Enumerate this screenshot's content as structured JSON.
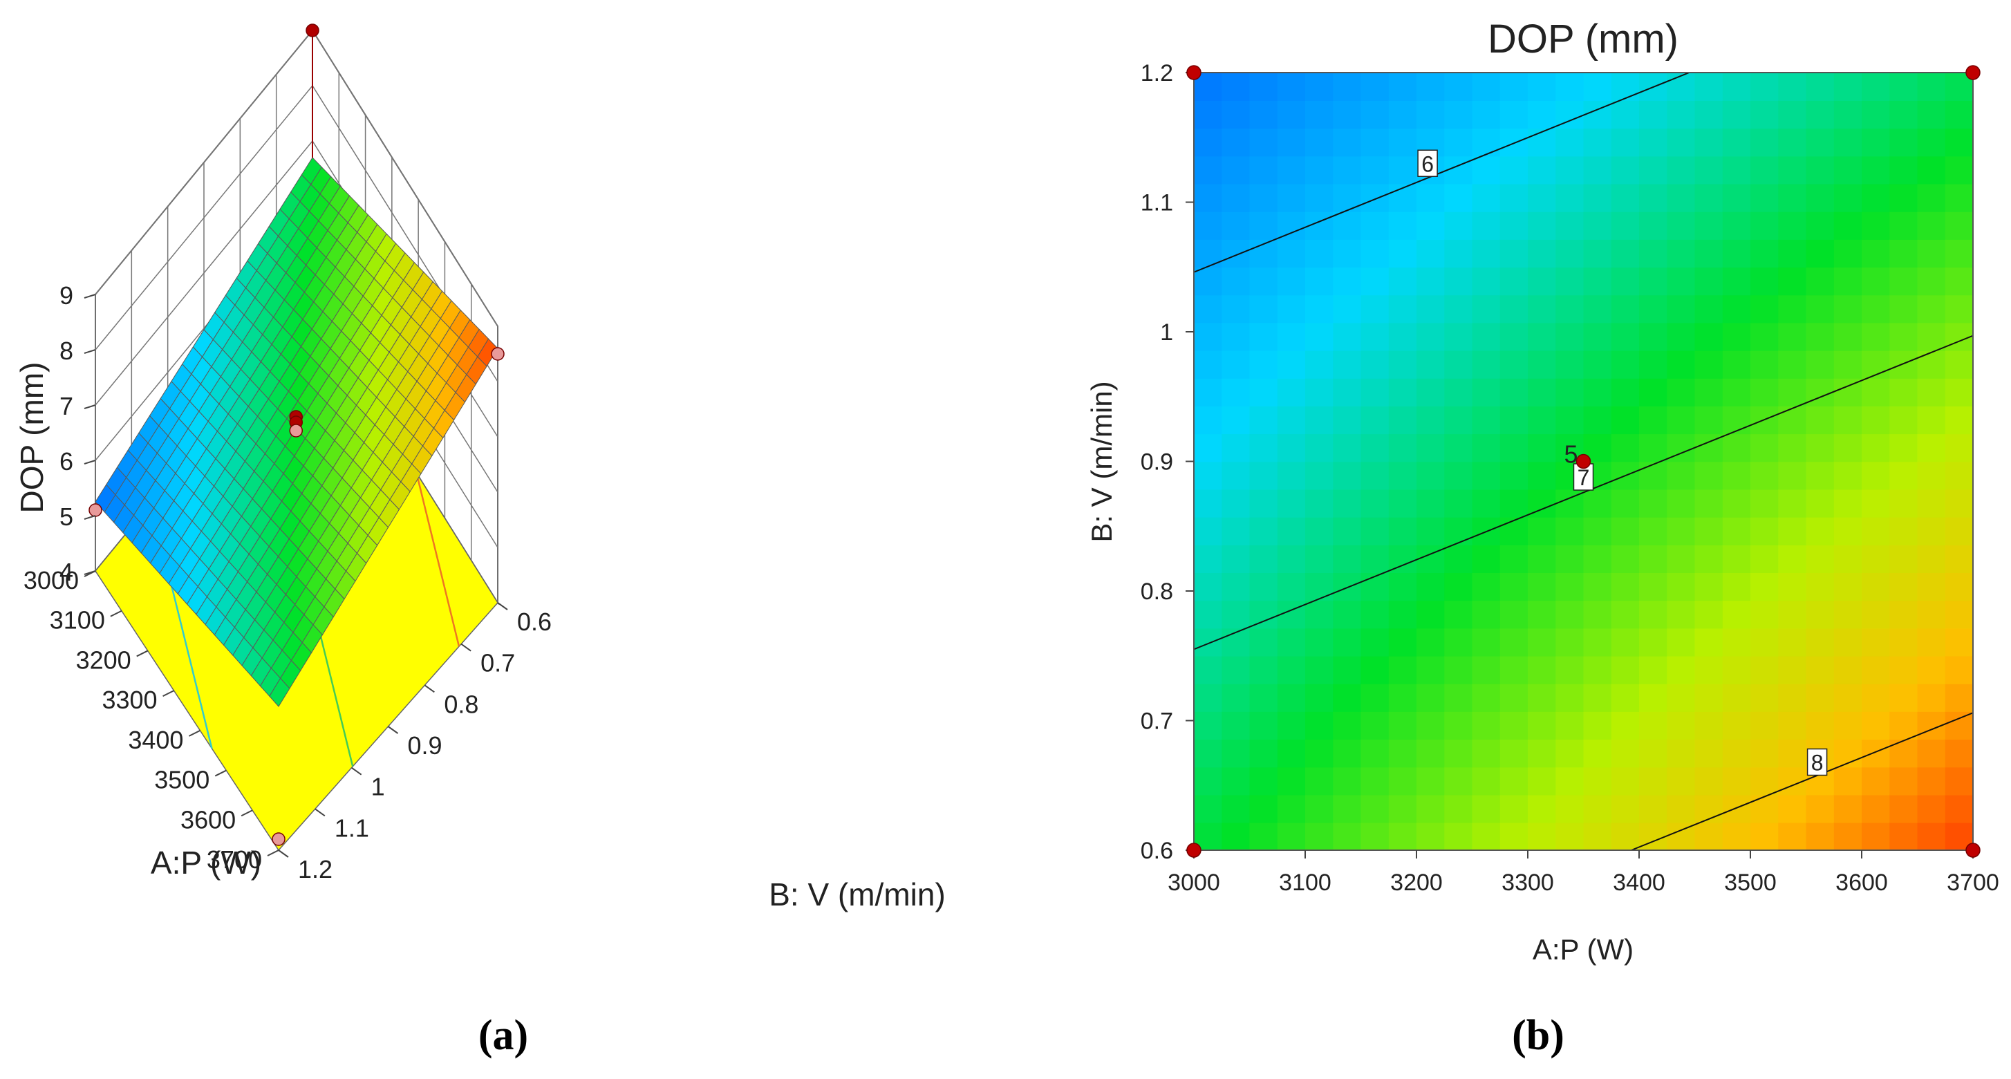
{
  "chart_data": [
    {
      "type": "surface3d",
      "panel_label": "(a)",
      "zlabel": "DOP (mm)",
      "xlabel": "A:P (W)",
      "ylabel": "B: V (m/min)",
      "z_ticks": [
        "4",
        "5",
        "6",
        "7",
        "8",
        "9"
      ],
      "x_ticks": [
        "3000",
        "3100",
        "3200",
        "3300",
        "3400",
        "3500",
        "3600",
        "3700"
      ],
      "y_ticks": [
        "0.6",
        "0.7",
        "0.8",
        "0.9",
        "1",
        "1.1",
        "1.2"
      ],
      "xlim": [
        3000,
        3700
      ],
      "ylim": [
        0.6,
        1.2
      ],
      "zlim": [
        4,
        9
      ],
      "corner_values": {
        "p3000_v1.2": 5.25,
        "p3000_v0.6": 6.7,
        "p3700_v1.2": 6.6,
        "p3700_v0.6": 8.6
      },
      "design_points": [
        {
          "P": 3000,
          "V": 1.2,
          "DOP": 5.1
        },
        {
          "P": 3700,
          "V": 1.2,
          "DOP": 4.2
        },
        {
          "P": 3000,
          "V": 0.6,
          "DOP": 9.0
        },
        {
          "P": 3700,
          "V": 0.6,
          "DOP": 8.5
        },
        {
          "P": 3350,
          "V": 0.9,
          "DOP": 7.0
        },
        {
          "P": 3350,
          "V": 0.9,
          "DOP": 6.9
        },
        {
          "P": 3350,
          "V": 0.9,
          "DOP": 6.75
        }
      ]
    },
    {
      "type": "contour",
      "panel_label": "(b)",
      "title": "DOP (mm)",
      "xlabel": "A:P (W)",
      "ylabel": "B: V (m/min)",
      "x_ticks": [
        "3000",
        "3100",
        "3200",
        "3300",
        "3400",
        "3500",
        "3600",
        "3700"
      ],
      "y_ticks": [
        "0.6",
        "0.7",
        "0.8",
        "0.9",
        "1",
        "1.1",
        "1.2"
      ],
      "xlim": [
        3000,
        3700
      ],
      "ylim": [
        0.6,
        1.2
      ],
      "contours": [
        {
          "level": "6",
          "label": "6",
          "label_at": [
            3210,
            1.13
          ],
          "from": [
            3000,
            1.046
          ],
          "to": [
            3445,
            1.2
          ]
        },
        {
          "level": "7",
          "label": "7",
          "label_at": [
            3350,
            0.888
          ],
          "from": [
            3000,
            0.755
          ],
          "to": [
            3700,
            0.997
          ]
        },
        {
          "level": "8",
          "label": "8",
          "label_at": [
            3560,
            0.668
          ],
          "from": [
            3393,
            0.6
          ],
          "to": [
            3700,
            0.706
          ]
        }
      ],
      "center_point": {
        "P": 3350,
        "V": 0.9,
        "replicates_label": "5"
      },
      "design_points": [
        {
          "P": 3000,
          "V": 1.2
        },
        {
          "P": 3700,
          "V": 1.2
        },
        {
          "P": 3000,
          "V": 0.6
        },
        {
          "P": 3700,
          "V": 0.6
        },
        {
          "P": 3350,
          "V": 0.9
        }
      ]
    }
  ]
}
